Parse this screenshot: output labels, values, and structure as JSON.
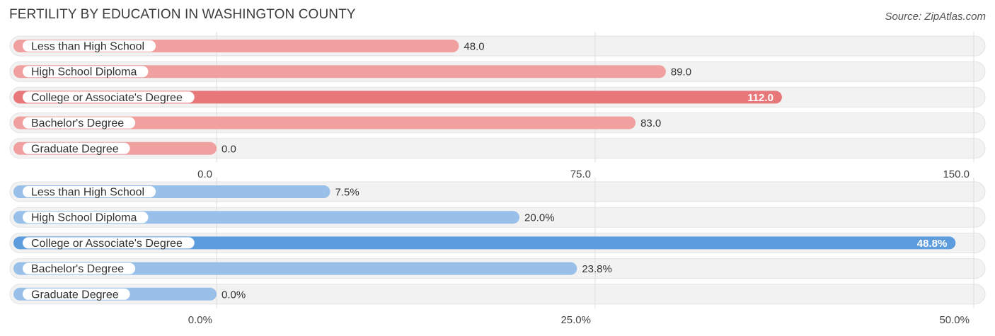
{
  "title": "FERTILITY BY EDUCATION IN WASHINGTON COUNTY",
  "source": "Source: ZipAtlas.com",
  "colors": {
    "top_bar": "#f0a09e",
    "top_bar_highlight": "#e8777a",
    "bottom_bar": "#99c0e8",
    "bottom_bar_highlight": "#5d9ddd",
    "row_bg": "#f2f2f2",
    "grid": "#dddddd"
  },
  "chart_data": [
    {
      "type": "bar",
      "orientation": "horizontal",
      "categories": [
        "Less than High School",
        "High School Diploma",
        "College or Associate's Degree",
        "Bachelor's Degree",
        "Graduate Degree"
      ],
      "values": [
        48.0,
        89.0,
        112.0,
        83.0,
        0.0
      ],
      "value_labels": [
        "48.0",
        "89.0",
        "112.0",
        "83.0",
        "0.0"
      ],
      "xlim": [
        0,
        150
      ],
      "ticks": [
        0,
        75,
        150
      ],
      "tick_labels": [
        "0.0",
        "75.0",
        "150.0"
      ],
      "highlight_index": 2,
      "color": "#f0a09e",
      "highlight_color": "#e8777a"
    },
    {
      "type": "bar",
      "orientation": "horizontal",
      "categories": [
        "Less than High School",
        "High School Diploma",
        "College or Associate's Degree",
        "Bachelor's Degree",
        "Graduate Degree"
      ],
      "values": [
        7.5,
        20.0,
        48.8,
        23.8,
        0.0
      ],
      "value_labels": [
        "7.5%",
        "20.0%",
        "48.8%",
        "23.8%",
        "0.0%"
      ],
      "xlim": [
        0,
        50
      ],
      "ticks": [
        0,
        25,
        50
      ],
      "tick_labels": [
        "0.0%",
        "25.0%",
        "50.0%"
      ],
      "highlight_index": 2,
      "color": "#99c0e8",
      "highlight_color": "#5d9ddd"
    }
  ]
}
